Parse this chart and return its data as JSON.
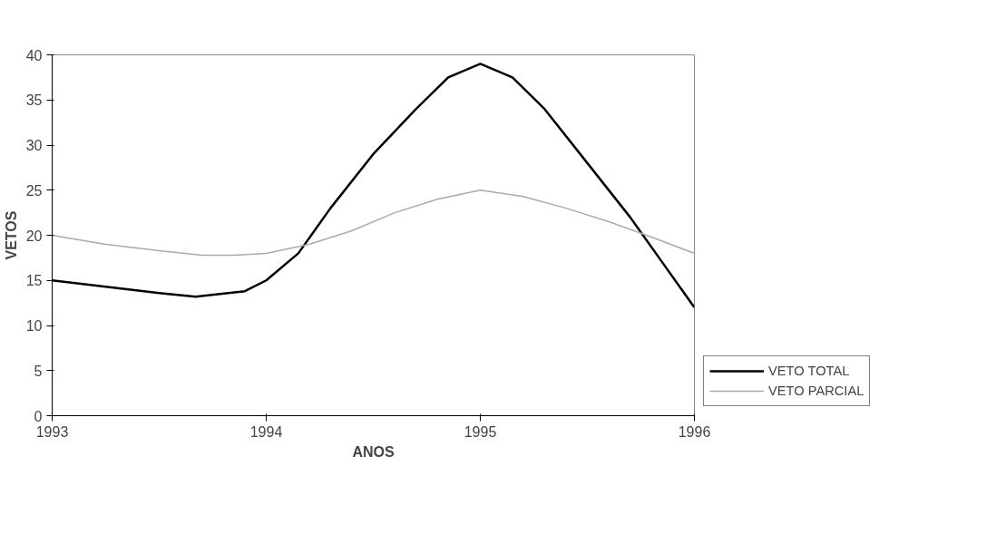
{
  "chart_data": {
    "type": "line",
    "xlabel": "ANOS",
    "ylabel": "VETOS",
    "series": [
      {
        "name": "VETO TOTAL",
        "color": "#000000",
        "x": [
          1993,
          1993.25,
          1993.5,
          1993.67,
          1993.9,
          1994,
          1994.15,
          1994.3,
          1994.5,
          1994.7,
          1994.85,
          1995,
          1995.15,
          1995.3,
          1995.5,
          1995.7,
          1995.85,
          1996
        ],
        "values": [
          15,
          14.3,
          13.6,
          13.2,
          13.8,
          15,
          18,
          23,
          29,
          34,
          37.5,
          39,
          37.5,
          34,
          28,
          22,
          17,
          12
        ]
      },
      {
        "name": "VETO PARCIAL",
        "color": "#aaaaaa",
        "x": [
          1993,
          1993.25,
          1993.5,
          1993.7,
          1993.85,
          1994,
          1994.2,
          1994.4,
          1994.6,
          1994.8,
          1995,
          1995.2,
          1995.4,
          1995.6,
          1995.8,
          1996
        ],
        "values": [
          20,
          19,
          18.3,
          17.8,
          17.8,
          18,
          19,
          20.5,
          22.5,
          24,
          25,
          24.3,
          23,
          21.5,
          19.8,
          18
        ]
      }
    ],
    "xlim": [
      1993,
      1996
    ],
    "xticks": [
      1993,
      1994,
      1995,
      1996
    ],
    "ylim": [
      0,
      40
    ],
    "yticks": [
      0,
      5,
      10,
      15,
      20,
      25,
      30,
      35,
      40
    ],
    "grid": false,
    "legend": "bottom right"
  }
}
